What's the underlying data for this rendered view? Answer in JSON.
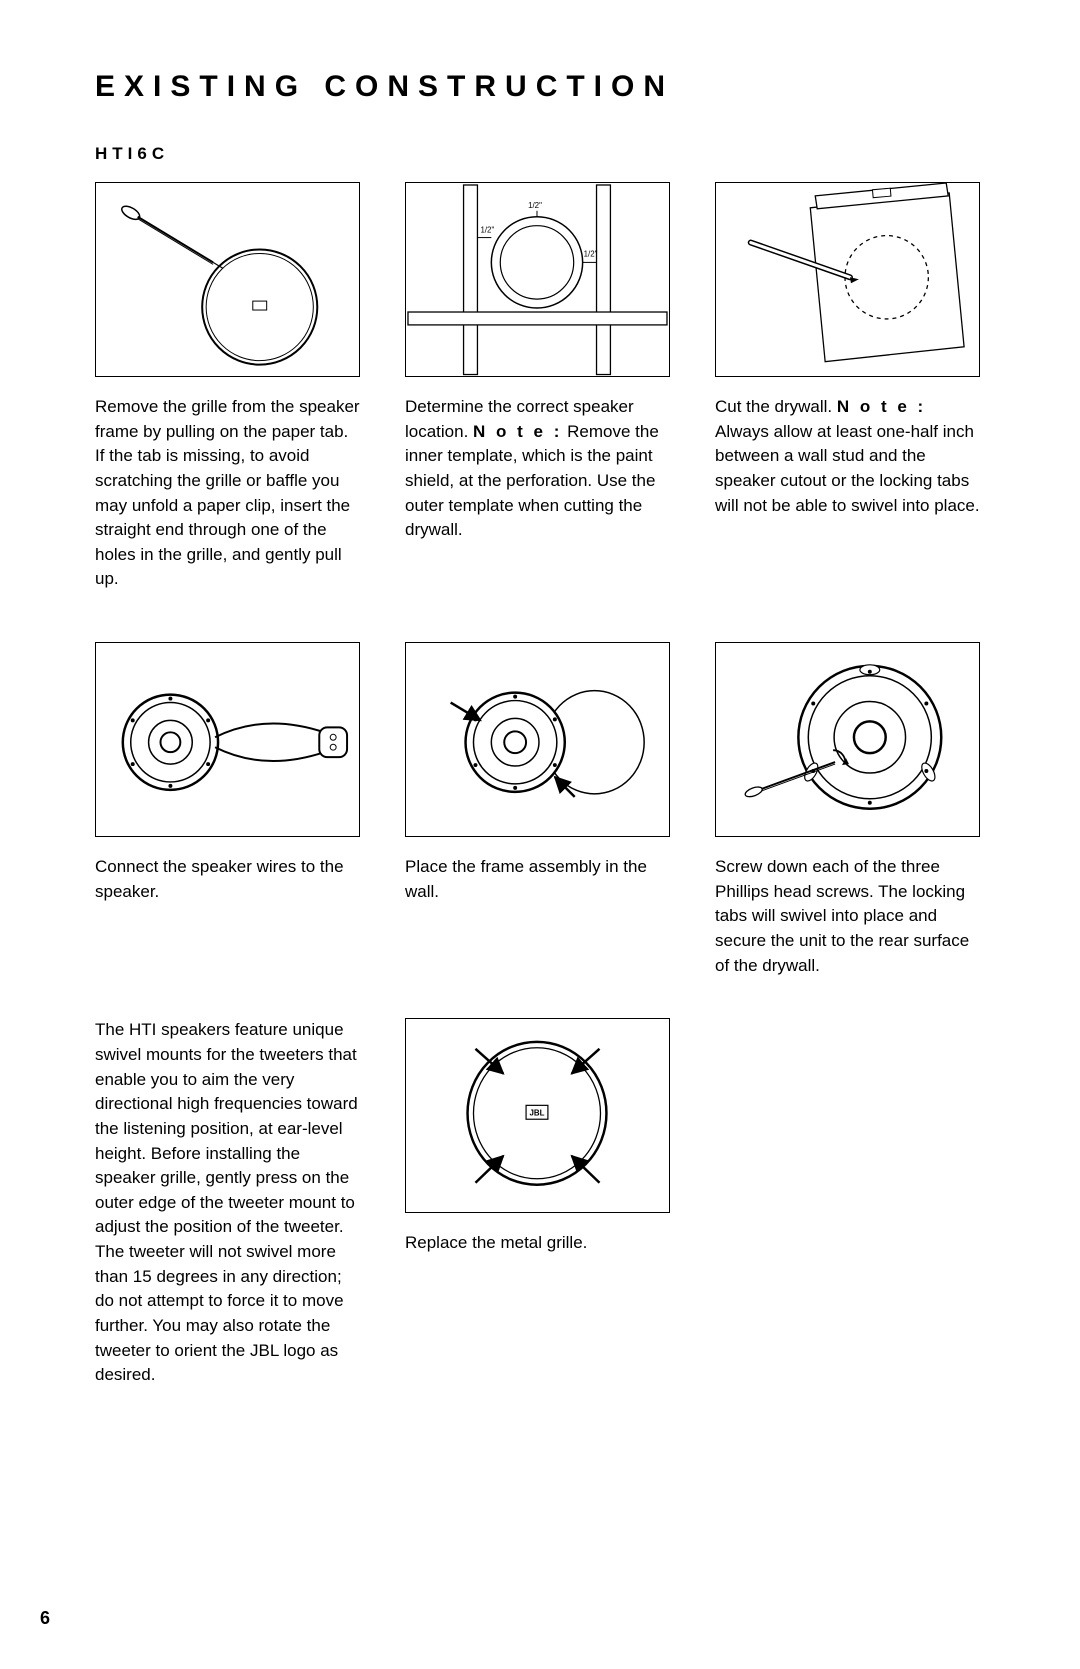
{
  "page": {
    "title": "EXISTING CONSTRUCTION",
    "subtitle": "HTI6C",
    "page_number": "6",
    "colors": {
      "text": "#000000",
      "bg": "#ffffff",
      "stroke": "#000000"
    },
    "font": {
      "body_size_pt": 12,
      "title_size_pt": 22,
      "subtitle_size_pt": 13
    }
  },
  "labels": {
    "half_inch": "1/2\"",
    "note_word": "Note:",
    "jbl": "JBL"
  },
  "steps": [
    {
      "id": "step1",
      "caption_parts": [
        {
          "text": "Remove the grille from the speaker frame by pulling on the paper tab. If the tab is missing, to avoid scratching the grille or baffle you may unfold a paper clip, insert the straight end through one of the holes in the grille, and gently pull up.",
          "bold": false
        }
      ]
    },
    {
      "id": "step2",
      "caption_parts": [
        {
          "text": "Determine the correct speaker location. ",
          "bold": false
        },
        {
          "text": "Note:",
          "bold": true,
          "spaced": true
        },
        {
          "text": " Remove the inner template, which is the paint shield, at the perforation. Use the outer template when cutting the drywall.",
          "bold": false
        }
      ]
    },
    {
      "id": "step3",
      "caption_parts": [
        {
          "text": "Cut the drywall. ",
          "bold": false
        },
        {
          "text": "Note:",
          "bold": true,
          "spaced": true
        },
        {
          "text": " Always allow at least one-half inch between a wall stud and the speaker cutout or the lock­ing tabs will not be able to swivel into place.",
          "bold": false
        }
      ]
    },
    {
      "id": "step4",
      "caption_parts": [
        {
          "text": "Connect the speaker wires to the speaker.",
          "bold": false
        }
      ]
    },
    {
      "id": "step5",
      "caption_parts": [
        {
          "text": "Place the frame assembly in the wall.",
          "bold": false
        }
      ]
    },
    {
      "id": "step6",
      "caption_parts": [
        {
          "text": "Screw down each of the three Phillips head screws. The locking tabs will swivel into place and secure the unit to the rear surface of the drywall.",
          "bold": false
        }
      ]
    },
    {
      "id": "step7",
      "caption_parts": [
        {
          "text": "The HTI speakers feature unique swivel mounts for the tweeters that enable you to aim the very directional high frequencies toward the listening position, at ear-level height. Before installing the speaker grille, gently press on the outer edge of the tweeter mount to adjust the position of the tweeter. The tweeter will not swivel more than 15 degrees in any direction; do not attempt to force it to move further. You may also rotate the tweeter to orient the JBL logo as desired.",
          "bold": false
        }
      ]
    },
    {
      "id": "step8",
      "caption_parts": [
        {
          "text": "Replace the metal grille.",
          "bold": false
        }
      ]
    }
  ]
}
